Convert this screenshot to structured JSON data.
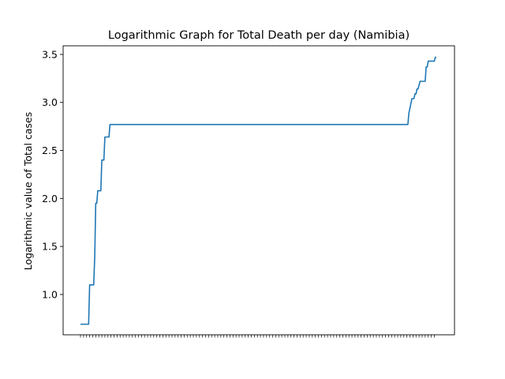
{
  "chart_data": {
    "type": "line",
    "title": "Logarithmic Graph for Total Death per day (Namibia)",
    "xlabel": "",
    "ylabel": "Logarithmic value of Total cases",
    "ylim": [
      0.58,
      3.59
    ],
    "yticks": [
      1.0,
      1.5,
      2.0,
      2.5,
      3.0,
      3.5
    ],
    "ytick_labels": [
      "1.0",
      "1.5",
      "2.0",
      "2.5",
      "3.0",
      "3.5"
    ],
    "grid": false,
    "line_color": "#1f77b4",
    "series": [
      {
        "values": [
          0.69,
          0.69,
          0.69,
          0.69,
          0.69,
          0.69,
          0.69,
          0.69,
          0.69,
          1.1,
          1.1,
          1.1,
          1.1,
          1.1,
          1.39,
          1.95,
          1.95,
          2.08,
          2.08,
          2.08,
          2.08,
          2.4,
          2.4,
          2.4,
          2.64,
          2.64,
          2.64,
          2.64,
          2.64,
          2.77,
          2.77,
          2.77,
          2.77,
          2.77,
          2.77,
          2.77,
          2.77,
          2.77,
          2.77,
          2.77,
          2.77,
          2.77,
          2.77,
          2.77,
          2.77,
          2.77,
          2.77,
          2.77,
          2.77,
          2.77,
          2.77,
          2.77,
          2.77,
          2.77,
          2.77,
          2.77,
          2.77,
          2.77,
          2.77,
          2.77,
          2.77,
          2.77,
          2.77,
          2.77,
          2.77,
          2.77,
          2.77,
          2.77,
          2.77,
          2.77,
          2.77,
          2.77,
          2.77,
          2.77,
          2.77,
          2.77,
          2.77,
          2.77,
          2.77,
          2.77,
          2.77,
          2.77,
          2.77,
          2.77,
          2.77,
          2.77,
          2.77,
          2.77,
          2.77,
          2.77,
          2.77,
          2.77,
          2.77,
          2.77,
          2.77,
          2.77,
          2.77,
          2.77,
          2.77,
          2.77,
          2.77,
          2.77,
          2.77,
          2.77,
          2.77,
          2.77,
          2.77,
          2.77,
          2.77,
          2.77,
          2.77,
          2.77,
          2.77,
          2.77,
          2.77,
          2.77,
          2.77,
          2.77,
          2.77,
          2.77,
          2.77,
          2.77,
          2.77,
          2.77,
          2.77,
          2.77,
          2.77,
          2.77,
          2.77,
          2.77,
          2.77,
          2.77,
          2.77,
          2.77,
          2.77,
          2.77,
          2.77,
          2.77,
          2.77,
          2.77,
          2.77,
          2.77,
          2.77,
          2.77,
          2.77,
          2.77,
          2.77,
          2.77,
          2.77,
          2.77,
          2.77,
          2.77,
          2.77,
          2.77,
          2.77,
          2.77,
          2.77,
          2.77,
          2.77,
          2.77,
          2.77,
          2.77,
          2.77,
          2.77,
          2.77,
          2.77,
          2.77,
          2.77,
          2.77,
          2.77,
          2.77,
          2.77,
          2.77,
          2.77,
          2.77,
          2.77,
          2.77,
          2.77,
          2.77,
          2.77,
          2.77,
          2.77,
          2.77,
          2.77,
          2.77,
          2.77,
          2.77,
          2.77,
          2.77,
          2.77,
          2.77,
          2.77,
          2.77,
          2.77,
          2.77,
          2.77,
          2.77,
          2.77,
          2.77,
          2.77,
          2.77,
          2.77,
          2.77,
          2.77,
          2.77,
          2.77,
          2.77,
          2.77,
          2.77,
          2.77,
          2.77,
          2.77,
          2.77,
          2.77,
          2.77,
          2.77,
          2.77,
          2.77,
          2.77,
          2.77,
          2.77,
          2.77,
          2.77,
          2.77,
          2.77,
          2.77,
          2.77,
          2.77,
          2.77,
          2.77,
          2.77,
          2.77,
          2.77,
          2.77,
          2.77,
          2.77,
          2.77,
          2.77,
          2.77,
          2.77,
          2.77,
          2.77,
          2.77,
          2.77,
          2.77,
          2.77,
          2.77,
          2.77,
          2.77,
          2.77,
          2.77,
          2.77,
          2.77,
          2.77,
          2.77,
          2.77,
          2.77,
          2.77,
          2.77,
          2.77,
          2.77,
          2.77,
          2.77,
          2.77,
          2.77,
          2.77,
          2.77,
          2.77,
          2.77,
          2.77,
          2.77,
          2.77,
          2.77,
          2.77,
          2.77,
          2.77,
          2.77,
          2.77,
          2.77,
          2.77,
          2.77,
          2.77,
          2.77,
          2.77,
          2.77,
          2.77,
          2.77,
          2.77,
          2.77,
          2.77,
          2.77,
          2.77,
          2.77,
          2.77,
          2.77,
          2.77,
          2.77,
          2.77,
          2.77,
          2.77,
          2.77,
          2.77,
          2.77,
          2.77,
          2.77,
          2.77,
          2.77,
          2.77,
          2.77,
          2.77,
          2.77,
          2.77,
          2.77,
          2.77,
          2.77,
          2.77,
          2.77,
          2.77,
          2.77,
          2.77,
          2.77,
          2.77,
          2.77,
          2.89,
          2.94,
          2.99,
          3.04,
          3.04,
          3.04,
          3.09,
          3.09,
          3.14,
          3.14,
          3.18,
          3.22,
          3.22,
          3.22,
          3.22,
          3.22,
          3.22,
          3.37,
          3.37,
          3.43,
          3.43,
          3.43,
          3.43,
          3.43,
          3.43,
          3.43,
          3.47,
          3.47
        ]
      }
    ]
  }
}
